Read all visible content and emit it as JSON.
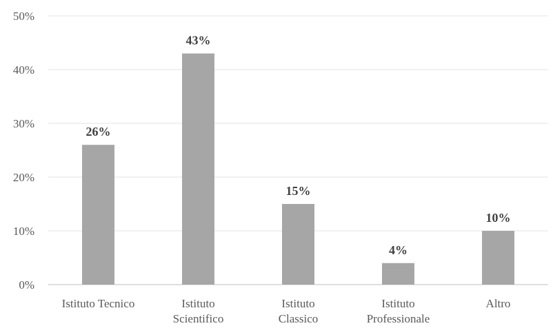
{
  "chart_data": {
    "type": "bar",
    "title": "",
    "xlabel": "",
    "ylabel": "",
    "categories": [
      "Istituto Tecnico",
      "Istituto Scientifico",
      "Istituto Classico",
      "Istituto Professionale",
      "Altro"
    ],
    "category_lines": [
      [
        "Istituto Tecnico"
      ],
      [
        "Istituto",
        "Scientifico"
      ],
      [
        "Istituto",
        "Classico"
      ],
      [
        "Istituto",
        "Professionale"
      ],
      [
        "Altro"
      ]
    ],
    "values": [
      26,
      43,
      15,
      4,
      10
    ],
    "value_labels": [
      "26%",
      "43%",
      "15%",
      "4%",
      "10%"
    ],
    "ylim": [
      0,
      50
    ],
    "yticks": [
      0,
      10,
      20,
      30,
      40,
      50
    ],
    "ytick_labels": [
      "0%",
      "10%",
      "20%",
      "30%",
      "40%",
      "50%"
    ],
    "grid": true,
    "legend": "none",
    "bar_color": "#a6a6a6"
  }
}
